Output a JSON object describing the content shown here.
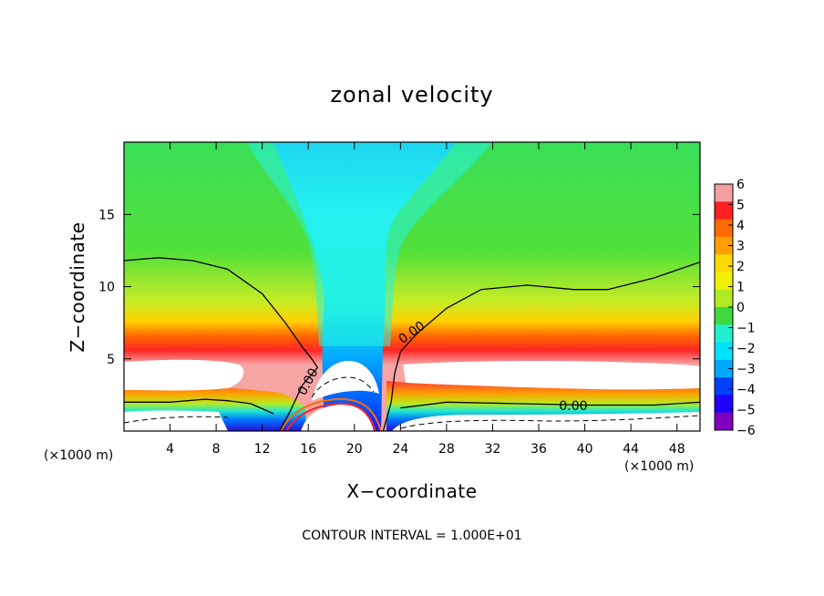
{
  "chart_data": {
    "type": "heatmap",
    "title": "zonal velocity",
    "xlabel": "X−coordinate",
    "ylabel": "Z−coordinate",
    "x_unit_left": "(×1000 m)",
    "x_unit_right": "(×1000 m)",
    "xlim": [
      0,
      50
    ],
    "ylim": [
      0,
      20
    ],
    "x_ticks": [
      4,
      8,
      12,
      16,
      20,
      24,
      28,
      32,
      36,
      40,
      44,
      48
    ],
    "x_tick_labels": [
      "4",
      "8",
      "12",
      "16",
      "20",
      "24",
      "28",
      "32",
      "36",
      "40",
      "44",
      "48"
    ],
    "y_ticks": [
      5,
      10,
      15
    ],
    "y_tick_labels": [
      "5",
      "10",
      "15"
    ],
    "colorbar": {
      "levels": [
        6,
        5,
        4,
        3,
        2,
        1,
        0,
        -1,
        -2,
        -3,
        -4,
        -5,
        -6
      ],
      "labels": [
        "6",
        "5",
        "4",
        "3",
        "2",
        "1",
        "0",
        "−1",
        "−2",
        "−3",
        "−4",
        "−5",
        "−6"
      ],
      "colors": [
        "#f4a0a0",
        "#ff2020",
        "#ff6a00",
        "#ffa000",
        "#ffd800",
        "#f0f000",
        "#b0ea20",
        "#40d840",
        "#20f0d0",
        "#00e0ff",
        "#00a8ff",
        "#0040ff",
        "#2000ff",
        "#8000c0"
      ]
    },
    "contour_label": "0.00",
    "contour_labels": [
      {
        "text": "0.00",
        "x": 16.0,
        "z": 3.4
      },
      {
        "text": "0.00",
        "x": 25.0,
        "z": 6.8
      },
      {
        "text": "0.00",
        "x": 39.0,
        "z": 1.7
      }
    ],
    "zero_contours": [
      {
        "name": "upper",
        "points": [
          [
            0,
            11.8
          ],
          [
            3,
            12.0
          ],
          [
            6,
            11.8
          ],
          [
            9,
            11.2
          ],
          [
            12,
            9.5
          ],
          [
            14,
            7.5
          ],
          [
            15.5,
            5.8
          ],
          [
            16.3,
            5.0
          ],
          [
            16.8,
            4.4
          ],
          [
            15.5,
            3.2
          ],
          [
            14.5,
            1.5
          ],
          [
            13.5,
            0
          ]
        ]
      },
      {
        "name": "upper-right",
        "points": [
          [
            22.5,
            0
          ],
          [
            23.2,
            2.0
          ],
          [
            23.5,
            4.0
          ],
          [
            24.0,
            5.5
          ],
          [
            25.5,
            6.8
          ],
          [
            28,
            8.5
          ],
          [
            31,
            9.8
          ],
          [
            35,
            10.1
          ],
          [
            39,
            9.8
          ],
          [
            42,
            9.8
          ],
          [
            46,
            10.6
          ],
          [
            50,
            11.7
          ]
        ]
      },
      {
        "name": "lower-left",
        "points": [
          [
            0,
            2.0
          ],
          [
            4,
            2.0
          ],
          [
            7,
            2.2
          ],
          [
            9,
            2.1
          ],
          [
            11,
            1.9
          ],
          [
            13,
            1.2
          ]
        ]
      },
      {
        "name": "lower-right",
        "points": [
          [
            24.0,
            1.6
          ],
          [
            28,
            2.0
          ],
          [
            34,
            1.9
          ],
          [
            40,
            1.8
          ],
          [
            46,
            1.8
          ],
          [
            50,
            2.0
          ]
        ]
      }
    ],
    "contour_interval_text": "CONTOUR INTERVAL = 1.000E+01"
  }
}
